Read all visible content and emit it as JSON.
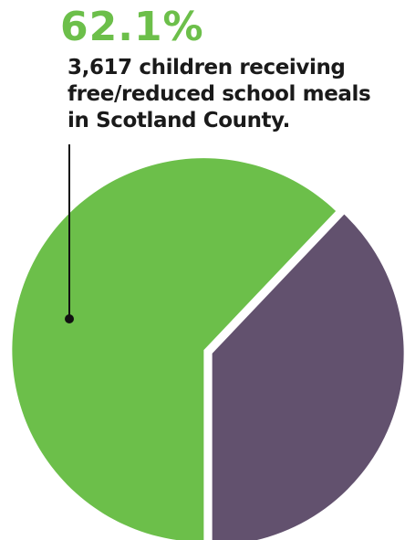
{
  "headline": {
    "value": "62.1%"
  },
  "caption": {
    "lines": [
      "3,617 children receiving",
      "free/reduced school meals",
      "in Scotland County."
    ]
  },
  "colors": {
    "green": "#6cbf4a",
    "purple": "#62516e",
    "text": "#1a1a1a",
    "leader": "#111111"
  },
  "chart_data": {
    "type": "pie",
    "values": [
      62.1,
      37.9
    ],
    "unit": "%",
    "highlighted_slice": 0,
    "annotation_label": "62.1%"
  }
}
